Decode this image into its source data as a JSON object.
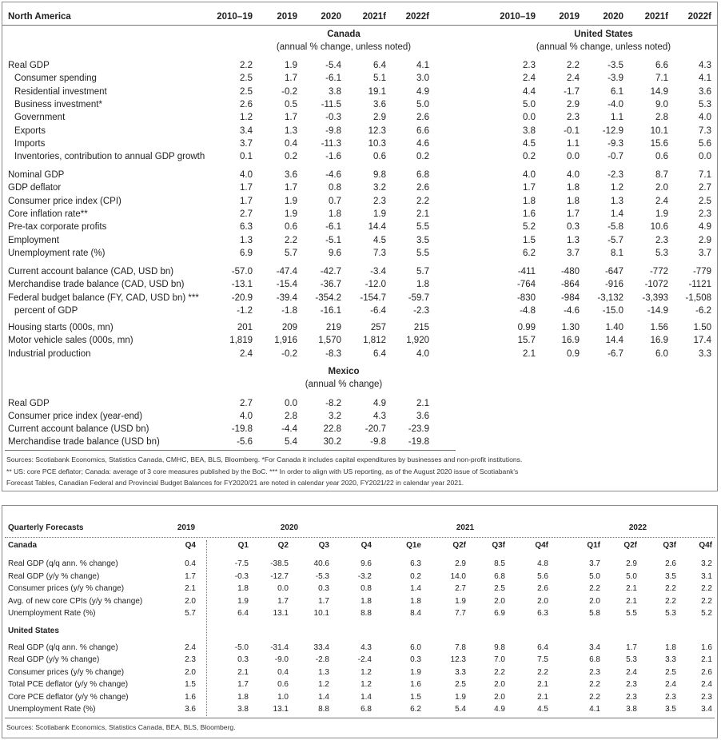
{
  "north_america": {
    "title": "North America",
    "columns": [
      "2010–19",
      "2019",
      "2020",
      "2021f",
      "2022f"
    ],
    "canada": {
      "heading": "Canada",
      "note": "(annual % change, unless noted)"
    },
    "united_states": {
      "heading": "United States",
      "note": "(annual % change, unless noted)"
    },
    "groups": [
      [
        {
          "label": "Real GDP",
          "canada": [
            "2.2",
            "1.9",
            "-5.4",
            "6.4",
            "4.1"
          ],
          "united_states": [
            "2.3",
            "2.2",
            "-3.5",
            "6.6",
            "4.3"
          ]
        },
        {
          "label": "Consumer spending",
          "canada": [
            "2.5",
            "1.7",
            "-6.1",
            "5.1",
            "3.0"
          ],
          "united_states": [
            "2.4",
            "2.4",
            "-3.9",
            "7.1",
            "4.1"
          ]
        },
        {
          "label": "Residential investment",
          "canada": [
            "2.5",
            "-0.2",
            "3.8",
            "19.1",
            "4.9"
          ],
          "united_states": [
            "4.4",
            "-1.7",
            "6.1",
            "14.9",
            "3.6"
          ]
        },
        {
          "label": "Business investment*",
          "canada": [
            "2.6",
            "0.5",
            "-11.5",
            "3.6",
            "5.0"
          ],
          "united_states": [
            "5.0",
            "2.9",
            "-4.0",
            "9.0",
            "5.3"
          ]
        },
        {
          "label": "Government",
          "canada": [
            "1.2",
            "1.7",
            "-0.3",
            "2.9",
            "2.6"
          ],
          "united_states": [
            "0.0",
            "2.3",
            "1.1",
            "2.8",
            "4.0"
          ]
        },
        {
          "label": "Exports",
          "canada": [
            "3.4",
            "1.3",
            "-9.8",
            "12.3",
            "6.6"
          ],
          "united_states": [
            "3.8",
            "-0.1",
            "-12.9",
            "10.1",
            "7.3"
          ]
        },
        {
          "label": "Imports",
          "canada": [
            "3.7",
            "0.4",
            "-11.3",
            "10.3",
            "4.6"
          ],
          "united_states": [
            "4.5",
            "1.1",
            "-9.3",
            "15.6",
            "5.6"
          ]
        },
        {
          "label": "Inventories, contribution to annual GDP growth",
          "canada": [
            "0.1",
            "0.2",
            "-1.6",
            "0.6",
            "0.2"
          ],
          "united_states": [
            "0.2",
            "0.0",
            "-0.7",
            "0.6",
            "0.0"
          ]
        }
      ],
      [
        {
          "label": "Nominal GDP",
          "canada": [
            "4.0",
            "3.6",
            "-4.6",
            "9.8",
            "6.8"
          ],
          "united_states": [
            "4.0",
            "4.0",
            "-2.3",
            "8.7",
            "7.1"
          ]
        },
        {
          "label": "GDP deflator",
          "canada": [
            "1.7",
            "1.7",
            "0.8",
            "3.2",
            "2.6"
          ],
          "united_states": [
            "1.7",
            "1.8",
            "1.2",
            "2.0",
            "2.7"
          ]
        },
        {
          "label": "Consumer price index (CPI)",
          "canada": [
            "1.7",
            "1.9",
            "0.7",
            "2.3",
            "2.2"
          ],
          "united_states": [
            "1.8",
            "1.8",
            "1.3",
            "2.4",
            "2.5"
          ]
        },
        {
          "label": "Core inflation rate**",
          "canada": [
            "2.7",
            "1.9",
            "1.8",
            "1.9",
            "2.1"
          ],
          "united_states": [
            "1.6",
            "1.7",
            "1.4",
            "1.9",
            "2.3"
          ]
        },
        {
          "label": "Pre-tax corporate profits",
          "canada": [
            "6.3",
            "0.6",
            "-6.1",
            "14.4",
            "5.5"
          ],
          "united_states": [
            "5.2",
            "0.3",
            "-5.8",
            "10.6",
            "4.9"
          ]
        },
        {
          "label": "Employment",
          "canada": [
            "1.3",
            "2.2",
            "-5.1",
            "4.5",
            "3.5"
          ],
          "united_states": [
            "1.5",
            "1.3",
            "-5.7",
            "2.3",
            "2.9"
          ]
        },
        {
          "label": "Unemployment rate (%)",
          "canada": [
            "6.9",
            "5.7",
            "9.6",
            "7.3",
            "5.5"
          ],
          "united_states": [
            "6.2",
            "3.7",
            "8.1",
            "5.3",
            "3.7"
          ]
        }
      ],
      [
        {
          "label": "Current account balance (CAD, USD bn)",
          "canada": [
            "-57.0",
            "-47.4",
            "-42.7",
            "-3.4",
            "5.7"
          ],
          "united_states": [
            "-411",
            "-480",
            "-647",
            "-772",
            "-779"
          ]
        },
        {
          "label": "Merchandise trade balance (CAD, USD bn)",
          "canada": [
            "-13.1",
            "-15.4",
            "-36.7",
            "-12.0",
            "1.8"
          ],
          "united_states": [
            "-764",
            "-864",
            "-916",
            "-1072",
            "-1121"
          ]
        },
        {
          "label": "Federal budget balance (FY, CAD, USD bn) ***",
          "canada": [
            "-20.9",
            "-39.4",
            "-354.2",
            "-154.7",
            "-59.7"
          ],
          "united_states": [
            "-830",
            "-984",
            "-3,132",
            "-3,393",
            "-1,508"
          ]
        },
        {
          "label": "percent of GDP",
          "canada": [
            "-1.2",
            "-1.8",
            "-16.1",
            "-6.4",
            "-2.3"
          ],
          "united_states": [
            "-4.8",
            "-4.6",
            "-15.0",
            "-14.9",
            "-6.2"
          ]
        }
      ],
      [
        {
          "label": "Housing starts (000s, mn)",
          "canada": [
            "201",
            "209",
            "219",
            "257",
            "215"
          ],
          "united_states": [
            "0.99",
            "1.30",
            "1.40",
            "1.56",
            "1.50"
          ]
        },
        {
          "label": "Motor vehicle sales (000s, mn)",
          "canada": [
            "1,819",
            "1,916",
            "1,570",
            "1,812",
            "1,920"
          ],
          "united_states": [
            "15.7",
            "16.9",
            "14.4",
            "16.9",
            "17.4"
          ]
        },
        {
          "label": "Industrial production",
          "canada": [
            "2.4",
            "-0.2",
            "-8.3",
            "6.4",
            "4.0"
          ],
          "united_states": [
            "2.1",
            "0.9",
            "-6.7",
            "6.0",
            "3.3"
          ]
        }
      ]
    ],
    "mexico": {
      "heading": "Mexico",
      "note": "(annual % change)",
      "rows": [
        {
          "label": "Real GDP",
          "values": [
            "2.7",
            "0.0",
            "-8.2",
            "4.9",
            "2.1"
          ]
        },
        {
          "label": "Consumer price index (year-end)",
          "values": [
            "4.0",
            "2.8",
            "3.2",
            "4.3",
            "3.6"
          ]
        },
        {
          "label": "Current account balance (USD bn)",
          "values": [
            "-19.8",
            "-4.4",
            "22.8",
            "-20.7",
            "-23.9"
          ]
        },
        {
          "label": "Merchandise trade balance (USD bn)",
          "values": [
            "-5.6",
            "5.4",
            "30.2",
            "-9.8",
            "-19.8"
          ]
        }
      ]
    },
    "sources": [
      "Sources: Scotiabank Economics, Statistics Canada, CMHC, BEA, BLS, Bloomberg. *For Canada it includes capital expenditures by businesses and non-profit institutions.",
      "** US: core PCE deflator; Canada: average of 3 core measures published by the BoC. *** In order to align with US reporting, as of the August 2020 issue of Scotiabank's",
      "Forecast Tables, Canadian Federal and Provincial Budget Balances for FY2020/21 are noted in calendar year 2020, FY2021/22 in calendar year 2021."
    ]
  },
  "quarterly": {
    "title": "Quarterly Forecasts",
    "years": [
      "2019",
      "2020",
      "2021",
      "2022"
    ],
    "quarters": [
      "Q4",
      "Q1",
      "Q2",
      "Q3",
      "Q4",
      "Q1e",
      "Q2f",
      "Q3f",
      "Q4f",
      "Q1f",
      "Q2f",
      "Q3f",
      "Q4f"
    ],
    "canada": {
      "heading": "Canada",
      "rows": [
        {
          "label": "Real GDP (q/q ann. % change)",
          "values": [
            "0.4",
            "-7.5",
            "-38.5",
            "40.6",
            "9.6",
            "6.3",
            "2.9",
            "8.5",
            "4.8",
            "3.7",
            "2.9",
            "2.6",
            "3.2"
          ]
        },
        {
          "label": "Real GDP (y/y % change)",
          "values": [
            "1.7",
            "-0.3",
            "-12.7",
            "-5.3",
            "-3.2",
            "0.2",
            "14.0",
            "6.8",
            "5.6",
            "5.0",
            "5.0",
            "3.5",
            "3.1"
          ]
        },
        {
          "label": "Consumer prices (y/y % change)",
          "values": [
            "2.1",
            "1.8",
            "0.0",
            "0.3",
            "0.8",
            "1.4",
            "2.7",
            "2.5",
            "2.6",
            "2.2",
            "2.1",
            "2.2",
            "2.2"
          ]
        },
        {
          "label": "Avg. of new core CPIs (y/y % change)",
          "values": [
            "2.0",
            "1.9",
            "1.7",
            "1.7",
            "1.8",
            "1.8",
            "1.9",
            "2.0",
            "2.0",
            "2.0",
            "2.1",
            "2.2",
            "2.2"
          ]
        },
        {
          "label": "Unemployment Rate (%)",
          "values": [
            "5.7",
            "6.4",
            "13.1",
            "10.1",
            "8.8",
            "8.4",
            "7.7",
            "6.9",
            "6.3",
            "5.8",
            "5.5",
            "5.3",
            "5.2"
          ]
        }
      ]
    },
    "united_states": {
      "heading": "United States",
      "rows": [
        {
          "label": "Real GDP (q/q ann. % change)",
          "values": [
            "2.4",
            "-5.0",
            "-31.4",
            "33.4",
            "4.3",
            "6.0",
            "7.8",
            "9.8",
            "6.4",
            "3.4",
            "1.7",
            "1.8",
            "1.6"
          ]
        },
        {
          "label": "Real GDP (y/y % change)",
          "values": [
            "2.3",
            "0.3",
            "-9.0",
            "-2.8",
            "-2.4",
            "0.3",
            "12.3",
            "7.0",
            "7.5",
            "6.8",
            "5.3",
            "3.3",
            "2.1"
          ]
        },
        {
          "label": "Consumer prices (y/y % change)",
          "values": [
            "2.0",
            "2.1",
            "0.4",
            "1.3",
            "1.2",
            "1.9",
            "3.3",
            "2.2",
            "2.2",
            "2.3",
            "2.4",
            "2.5",
            "2.6"
          ]
        },
        {
          "label": "Total PCE deflator (y/y % change)",
          "values": [
            "1.5",
            "1.7",
            "0.6",
            "1.2",
            "1.2",
            "1.6",
            "2.5",
            "2.0",
            "2.1",
            "2.2",
            "2.3",
            "2.4",
            "2.4"
          ]
        },
        {
          "label": "Core PCE deflator (y/y % change)",
          "values": [
            "1.6",
            "1.8",
            "1.0",
            "1.4",
            "1.4",
            "1.5",
            "1.9",
            "2.0",
            "2.1",
            "2.2",
            "2.3",
            "2.3",
            "2.3"
          ]
        },
        {
          "label": "Unemployment Rate (%)",
          "values": [
            "3.6",
            "3.8",
            "13.1",
            "8.8",
            "6.8",
            "6.2",
            "5.4",
            "4.9",
            "4.5",
            "4.1",
            "3.8",
            "3.5",
            "3.4"
          ]
        }
      ]
    },
    "sources": "Sources: Scotiabank Economics, Statistics Canada, BEA, BLS, Bloomberg."
  }
}
